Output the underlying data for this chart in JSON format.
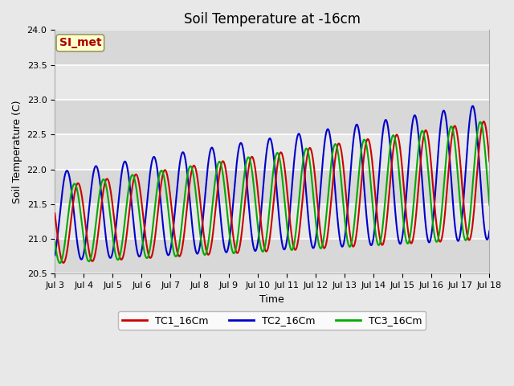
{
  "title": "Soil Temperature at -16cm",
  "xlabel": "Time",
  "ylabel": "Soil Temperature (C)",
  "ylim": [
    20.5,
    24.0
  ],
  "xlim_days": [
    3,
    18
  ],
  "fig_bg_color": "#e8e8e8",
  "plot_bg_color": "#e8e8e8",
  "series": {
    "TC1_16Cm": {
      "color": "#cc0000",
      "label": "TC1_16Cm"
    },
    "TC2_16Cm": {
      "color": "#0000cc",
      "label": "TC2_16Cm"
    },
    "TC3_16Cm": {
      "color": "#00aa00",
      "label": "TC3_16Cm"
    }
  },
  "annotation": {
    "text": "SI_met",
    "color": "#aa0000",
    "bg_color": "#ffffcc",
    "edge_color": "#999966",
    "fontsize": 10,
    "fontweight": "bold"
  },
  "xtick_labels": [
    "Jul 3",
    "Jul 4",
    "Jul 5",
    "Jul 6",
    "Jul 7",
    "Jul 8",
    "Jul 9",
    "Jul 10",
    "Jul 11",
    "Jul 12",
    "Jul 13",
    "Jul 14",
    "Jul 15",
    "Jul 16",
    "Jul 17",
    "Jul 18"
  ],
  "ytick_values": [
    20.5,
    21.0,
    21.5,
    22.0,
    22.5,
    23.0,
    23.5,
    24.0
  ],
  "ytick_labels": [
    "20.5",
    "21.0",
    "21.5",
    "22.0",
    "22.5",
    "23.0",
    "23.5",
    "24.0"
  ],
  "grid_color": "#ffffff",
  "alt_band_color": "#d8d8d8",
  "title_fontsize": 12,
  "label_fontsize": 9,
  "tick_fontsize": 8,
  "linewidth": 1.5
}
